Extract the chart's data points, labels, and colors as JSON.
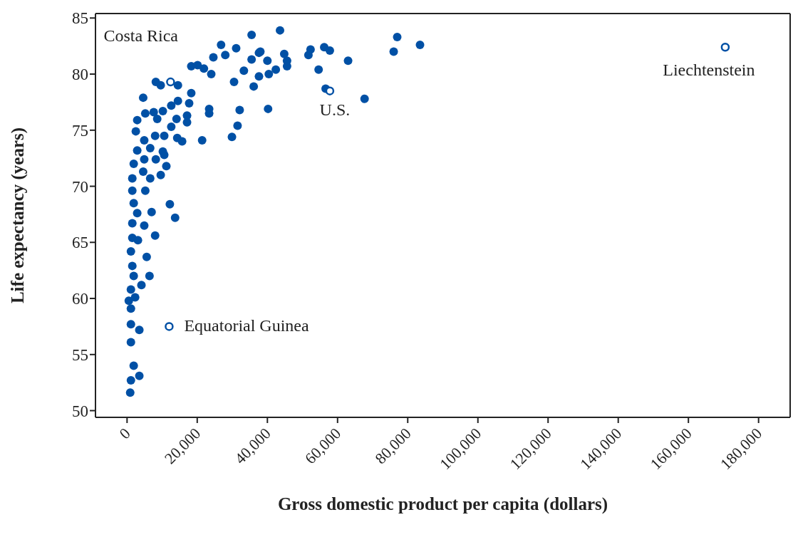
{
  "chart_data": {
    "type": "scatter",
    "xlabel": "Gross domestic product per capita (dollars)",
    "ylabel": "Life expectancy (years)",
    "xlim": [
      -9000,
      189000
    ],
    "xticks": [
      {
        "value": 0,
        "label": "0"
      },
      {
        "value": 20000,
        "label": "20,000"
      },
      {
        "value": 40000,
        "label": "40,000"
      },
      {
        "value": 60000,
        "label": "60,000"
      },
      {
        "value": 80000,
        "label": "80,000"
      },
      {
        "value": 100000,
        "label": "100,000"
      },
      {
        "value": 120000,
        "label": "120,000"
      },
      {
        "value": 140000,
        "label": "140,000"
      },
      {
        "value": 160000,
        "label": "160,000"
      },
      {
        "value": 180000,
        "label": "180,000"
      }
    ],
    "ylim": [
      49.4,
      85.4
    ],
    "yticks": [
      50,
      55,
      60,
      65,
      70,
      75,
      80,
      85
    ],
    "grid": false,
    "legend": false,
    "marker": "circle",
    "series": [
      {
        "color": "#0050a5",
        "x": [
          43600,
          35500,
          26800,
          31100,
          28000,
          24600,
          18300,
          20100,
          21900,
          24000,
          33300,
          30500,
          36100,
          37600,
          35500,
          37600,
          40000,
          40400,
          42400,
          44800,
          45600,
          8200,
          9600,
          14500,
          18300,
          4600,
          14500,
          17700,
          12600,
          10200,
          7600,
          5200,
          23400,
          23400,
          32100,
          40200,
          31500,
          29900,
          21400,
          14300,
          15700,
          17100,
          17100,
          14100,
          12600,
          2900,
          2500,
          8600,
          10600,
          8000,
          4900,
          2900,
          6600,
          10200,
          10600,
          1900,
          4900,
          8200,
          11200,
          1500,
          4600,
          6600,
          9600,
          1500,
          5200,
          1900,
          12200,
          7000,
          13700,
          2900,
          1500,
          4900,
          8000,
          1500,
          3100,
          5600,
          1100,
          1500,
          1900,
          6400,
          4100,
          1100,
          500,
          2300,
          1100,
          1100,
          3500,
          1100,
          1900,
          3500,
          1100,
          900,
          38000,
          45600,
          52300,
          51700,
          56200,
          57800,
          54600,
          63000,
          56600,
          67700,
          77000,
          76000,
          83500
        ],
        "values": [
          83.9,
          83.5,
          82.6,
          82.3,
          81.7,
          81.5,
          80.7,
          80.8,
          80.5,
          80.0,
          80.3,
          79.3,
          78.9,
          79.8,
          81.3,
          81.9,
          81.2,
          80.0,
          80.4,
          81.8,
          80.7,
          79.3,
          79.0,
          79.0,
          78.3,
          77.9,
          77.6,
          77.4,
          77.2,
          76.7,
          76.6,
          76.5,
          76.9,
          76.5,
          76.8,
          76.9,
          75.4,
          74.4,
          74.1,
          74.3,
          74.0,
          75.7,
          76.3,
          76.0,
          75.3,
          75.9,
          74.9,
          76.0,
          74.5,
          74.5,
          74.1,
          73.2,
          73.4,
          73.1,
          72.8,
          72.0,
          72.4,
          72.4,
          71.8,
          70.7,
          71.3,
          70.7,
          71.0,
          69.6,
          69.6,
          68.5,
          68.4,
          67.7,
          67.2,
          67.6,
          66.7,
          66.5,
          65.6,
          65.4,
          65.2,
          63.7,
          64.2,
          62.9,
          62.0,
          62.0,
          61.2,
          60.8,
          59.8,
          60.1,
          59.1,
          57.7,
          57.2,
          56.1,
          54.0,
          53.1,
          52.7,
          51.6,
          82.0,
          81.2,
          82.2,
          81.7,
          82.4,
          82.1,
          80.4,
          81.2,
          78.7,
          77.8,
          83.3,
          82.0,
          82.6
        ]
      },
      {
        "color": "#0050a5",
        "type": "scatter",
        "x": [
          12400,
          12000,
          57800,
          170500
        ],
        "values": [
          79.3,
          57.5,
          78.5,
          82.4
        ]
      }
    ],
    "annotations": [
      {
        "text": "Costa Rica",
        "x": 12400,
        "y": 79.3
      },
      {
        "text": "Equatorial Guinea",
        "x": 12000,
        "y": 57.5
      },
      {
        "text": "U.S.",
        "x": 57800,
        "y": 78.5
      },
      {
        "text": "Liechtenstein",
        "x": 170500,
        "y": 82.4
      }
    ]
  }
}
